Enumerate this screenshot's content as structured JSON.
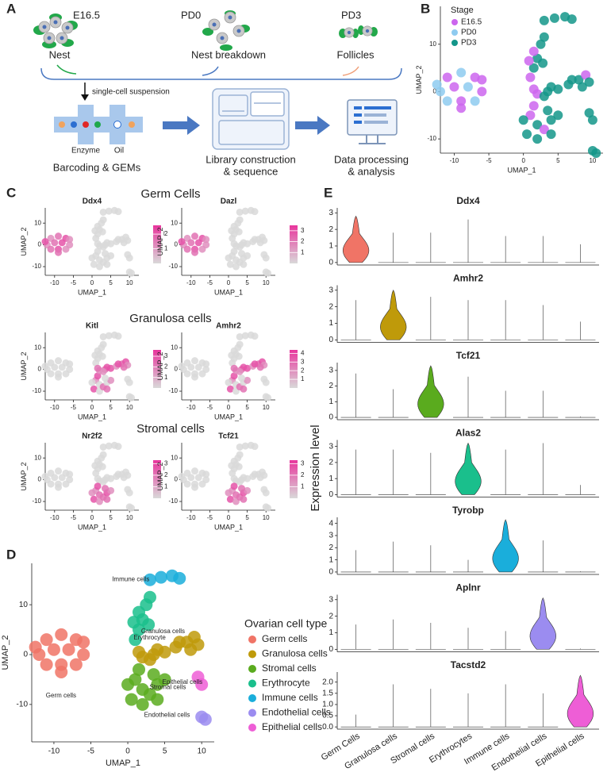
{
  "panel_labels": [
    "A",
    "B",
    "C",
    "D",
    "E"
  ],
  "workflow": {
    "stages": [
      "E16.5",
      "PD0",
      "PD3"
    ],
    "structures": [
      "Nest",
      "Nest breakdown",
      "Follicles"
    ],
    "step": "single-cell suspension",
    "reagents": [
      "Enzyme",
      "Oil"
    ],
    "outputs": [
      [
        "Barcoding & GEMs"
      ],
      [
        "Library construction",
        "& sequence"
      ],
      [
        "Data processing",
        "& analysis"
      ]
    ]
  },
  "feature_groups": [
    "Germ Cells",
    "Granulosa cells",
    "Stromal cells"
  ],
  "expression_label": "Expression level",
  "chart_data": [
    {
      "type": "scatter",
      "xlabel": "UMAP_1",
      "ylabel": "UMAP_2",
      "xlim": [
        -12,
        11.5
      ],
      "ylim": [
        -13,
        18
      ],
      "xticks": [
        -10,
        -5,
        0,
        5,
        10
      ],
      "yticks": [
        -10,
        0,
        10
      ],
      "legend_title": "Stage",
      "legend": [
        {
          "name": "E16.5",
          "color": "#cc66ee"
        },
        {
          "name": "PD0",
          "color": "#8ecbf0"
        },
        {
          "name": "PD3",
          "color": "#14968a"
        }
      ]
    },
    {
      "type": "scatter",
      "title": "Ddx4",
      "xlabel": "UMAP_1",
      "ylabel": "UMAP_2",
      "xlim": [
        -12.5,
        12.5
      ],
      "ylim": [
        -14,
        17
      ],
      "xticks": [
        -10,
        -5,
        0,
        5,
        10
      ],
      "yticks": [
        -10,
        0,
        10
      ],
      "clim": [
        0,
        2.6
      ],
      "cticks": [
        1,
        2
      ],
      "colors": [
        "#d9d9d9",
        "#e8359c"
      ]
    },
    {
      "type": "scatter",
      "title": "Dazl",
      "xlabel": "UMAP_1",
      "ylabel": "UMAP_2",
      "xlim": [
        -12.5,
        12.5
      ],
      "ylim": [
        -14,
        17
      ],
      "xticks": [
        -10,
        -5,
        0,
        5,
        10
      ],
      "yticks": [
        -10,
        0,
        10
      ],
      "clim": [
        0,
        3.5
      ],
      "cticks": [
        1,
        2,
        3
      ],
      "colors": [
        "#d9d9d9",
        "#e8359c"
      ]
    },
    {
      "type": "scatter",
      "title": "Kitl",
      "xlabel": "UMAP_1",
      "ylabel": "UMAP_2",
      "xlim": [
        -12.5,
        12.5
      ],
      "ylim": [
        -14,
        17
      ],
      "xticks": [
        -10,
        -5,
        0,
        5,
        10
      ],
      "yticks": [
        -10,
        0,
        10
      ],
      "clim": [
        0,
        3.6
      ],
      "cticks": [
        1,
        2,
        3
      ],
      "colors": [
        "#d9d9d9",
        "#e8359c"
      ]
    },
    {
      "type": "scatter",
      "title": "Amhr2",
      "xlabel": "UMAP_1",
      "ylabel": "UMAP_2",
      "xlim": [
        -12.5,
        12.5
      ],
      "ylim": [
        -14,
        17
      ],
      "xticks": [
        -10,
        -5,
        0,
        5,
        10
      ],
      "yticks": [
        -10,
        0,
        10
      ],
      "clim": [
        0,
        4.4
      ],
      "cticks": [
        1,
        2,
        3,
        4
      ],
      "colors": [
        "#d9d9d9",
        "#e8359c"
      ]
    },
    {
      "type": "scatter",
      "title": "Nr2f2",
      "xlabel": "UMAP_1",
      "ylabel": "UMAP_2",
      "xlim": [
        -12.5,
        12.5
      ],
      "ylim": [
        -14,
        17
      ],
      "xticks": [
        -10,
        -5,
        0,
        5,
        10
      ],
      "yticks": [
        -10,
        0,
        10
      ],
      "clim": [
        0,
        3.3
      ],
      "cticks": [
        1,
        2,
        3
      ],
      "colors": [
        "#d9d9d9",
        "#e8359c"
      ]
    },
    {
      "type": "scatter",
      "title": "Tcf21",
      "xlabel": "UMAP_1",
      "ylabel": "UMAP_2",
      "xlim": [
        -12.5,
        12.5
      ],
      "ylim": [
        -14,
        17
      ],
      "xticks": [
        -10,
        -5,
        0,
        5,
        10
      ],
      "yticks": [
        -10,
        0,
        10
      ],
      "clim": [
        0,
        3.3
      ],
      "cticks": [
        1,
        2,
        3
      ],
      "colors": [
        "#d9d9d9",
        "#e8359c"
      ]
    },
    {
      "type": "scatter",
      "xlabel": "UMAP_1",
      "ylabel": "UMAP_2",
      "xlim": [
        -13,
        11.7
      ],
      "ylim": [
        -17.5,
        18.3
      ],
      "xticks": [
        -10,
        -5,
        0,
        5,
        10
      ],
      "yticks": [
        -10,
        0,
        10
      ],
      "legend_title": "Ovarian cell type",
      "series": [
        {
          "name": "Germ cells",
          "color": "#f07466",
          "x": [
            -11,
            -9,
            -7,
            -12,
            -10,
            -8,
            -6,
            -11,
            -9,
            -7,
            -9,
            -12.5,
            -6
          ],
          "y": [
            3,
            4,
            3,
            0,
            1,
            1,
            0,
            -2,
            -2,
            -2,
            -3.5,
            1.5,
            2.5
          ]
        },
        {
          "name": "Granulosa cells",
          "color": "#bf9a0a",
          "x": [
            2,
            3.5,
            5,
            6.5,
            8,
            9,
            9.5,
            8.5,
            4,
            3,
            1.5,
            7
          ],
          "y": [
            -0.5,
            0,
            0.5,
            1.5,
            2.5,
            3.5,
            2,
            1,
            1,
            -1,
            0.5,
            2.5
          ]
        },
        {
          "name": "Stromal cells",
          "color": "#5aab1e",
          "x": [
            1,
            2,
            0.5,
            2,
            3,
            4,
            5,
            3.5,
            1.5,
            0,
            4
          ],
          "y": [
            -5,
            -7,
            -9,
            -10,
            -8,
            -6,
            -5,
            -4,
            -3,
            -6,
            -9
          ]
        },
        {
          "name": "Erythrocyte",
          "color": "#1abf8c",
          "x": [
            1,
            1.5,
            2,
            1.5,
            2.5,
            3,
            0.8,
            2.8
          ],
          "y": [
            3,
            5,
            7,
            8.5,
            10,
            11.5,
            6.5,
            6
          ]
        },
        {
          "name": "Immune cells",
          "color": "#1aaedb",
          "x": [
            3,
            4.5,
            6,
            7
          ],
          "y": [
            15,
            15.5,
            15.8,
            15.3
          ]
        },
        {
          "name": "Endothelial cells",
          "color": "#9b8cf0",
          "x": [
            10,
            10.5
          ],
          "y": [
            -12.5,
            -13
          ]
        },
        {
          "name": "Epithelial cells",
          "color": "#ee5ed6",
          "x": [
            9.5,
            10
          ],
          "y": [
            -4.5,
            -6
          ]
        }
      ]
    },
    {
      "type": "violin",
      "title": "Ddx4",
      "color": "#f07466",
      "ylim": [
        -0.15,
        3.3
      ],
      "yticks": [
        0,
        1,
        2,
        3
      ],
      "values": [
        2.8,
        1.8,
        1.8,
        2.6,
        1.6,
        1.6,
        1.1
      ]
    },
    {
      "type": "violin",
      "title": "Amhr2",
      "color": "#bf9a0a",
      "ylim": [
        -0.15,
        3.3
      ],
      "yticks": [
        0,
        1,
        2,
        3
      ],
      "values": [
        2.4,
        3.0,
        2.6,
        2.4,
        2.4,
        2.1,
        1.1
      ]
    },
    {
      "type": "violin",
      "title": "Tcf21",
      "color": "#5aab1e",
      "ylim": [
        -0.15,
        3.5
      ],
      "yticks": [
        0,
        1,
        2,
        3
      ],
      "values": [
        2.8,
        1.8,
        3.3,
        2.6,
        1.7,
        1.7,
        0.05
      ]
    },
    {
      "type": "violin",
      "title": "Alas2",
      "color": "#1abf8c",
      "ylim": [
        -0.15,
        3.4
      ],
      "yticks": [
        0,
        1,
        2,
        3
      ],
      "values": [
        2.8,
        2.8,
        2.6,
        3.2,
        2.8,
        3.2,
        0.6
      ]
    },
    {
      "type": "violin",
      "title": "Tyrobp",
      "color": "#1aaedb",
      "ylim": [
        -0.2,
        4.5
      ],
      "yticks": [
        0,
        1,
        2,
        3,
        4
      ],
      "values": [
        1.8,
        2.5,
        2.2,
        1.0,
        4.3,
        2.6,
        0.05
      ]
    },
    {
      "type": "violin",
      "title": "Aplnr",
      "color": "#9b8cf0",
      "ylim": [
        -0.15,
        3.3
      ],
      "yticks": [
        0,
        1,
        2,
        3
      ],
      "values": [
        1.5,
        1.8,
        1.6,
        1.3,
        1.1,
        3.1,
        0.05
      ]
    },
    {
      "type": "violin",
      "title": "Tacstd2",
      "color": "#ee5ed6",
      "ylim": [
        -0.1,
        2.45
      ],
      "yticks": [
        {
          "value": 0,
          "label": "0.0"
        },
        {
          "value": 0.5,
          "label": "0.5"
        },
        {
          "value": 1,
          "label": "1.0"
        },
        {
          "value": 1.5,
          "label": "1.5"
        },
        {
          "value": 2,
          "label": "2.0"
        }
      ],
      "values": [
        0.55,
        1.9,
        1.7,
        1.5,
        1.9,
        1.5,
        2.3
      ],
      "categories": [
        "Germ Cells",
        "Granulosa cells",
        "Stromal cells",
        "Erythrocytes",
        "Immune cells",
        "Endothelial cells",
        "Epithelial cells"
      ]
    }
  ]
}
